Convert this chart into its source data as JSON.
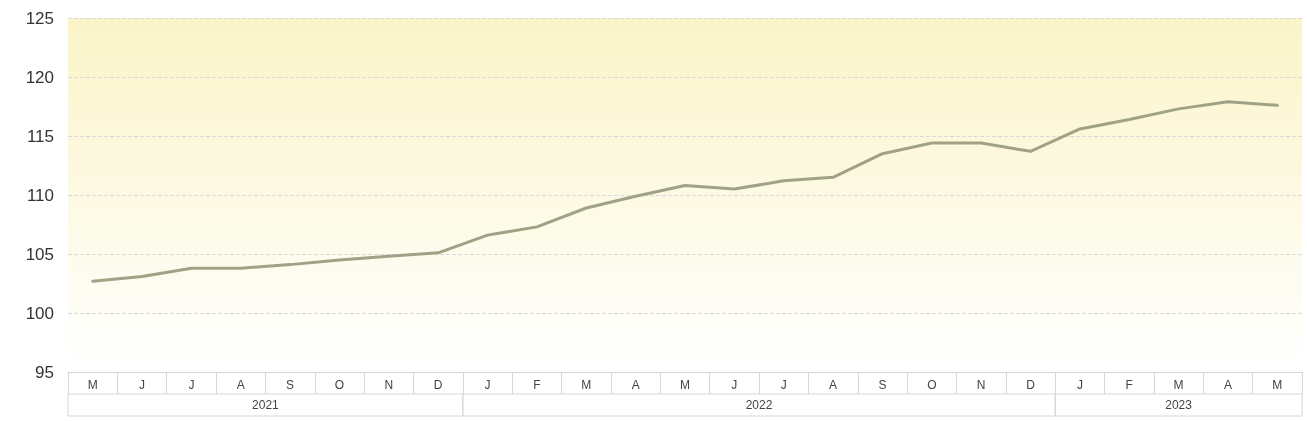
{
  "chart_data": {
    "type": "line",
    "categories": [
      "M",
      "J",
      "J",
      "A",
      "S",
      "O",
      "N",
      "D",
      "J",
      "F",
      "M",
      "A",
      "M",
      "J",
      "J",
      "A",
      "S",
      "O",
      "N",
      "D",
      "J",
      "F",
      "M",
      "A",
      "M"
    ],
    "series": [
      {
        "color": "#a0a286",
        "values": [
          102.7,
          103.1,
          103.8,
          103.8,
          104.1,
          104.5,
          104.8,
          105.1,
          106.6,
          107.3,
          108.9,
          109.9,
          110.8,
          110.5,
          111.2,
          111.5,
          113.5,
          114.4,
          114.4,
          113.7,
          115.6,
          116.4,
          117.3,
          117.9,
          117.6
        ]
      }
    ],
    "annotations": [
      "2021",
      "2022",
      "2023"
    ],
    "ylim": [
      95,
      125
    ],
    "yticks": [
      95,
      100,
      105,
      110,
      115,
      120,
      125
    ],
    "grid": "y",
    "marker": "none",
    "line_style": "solid"
  }
}
